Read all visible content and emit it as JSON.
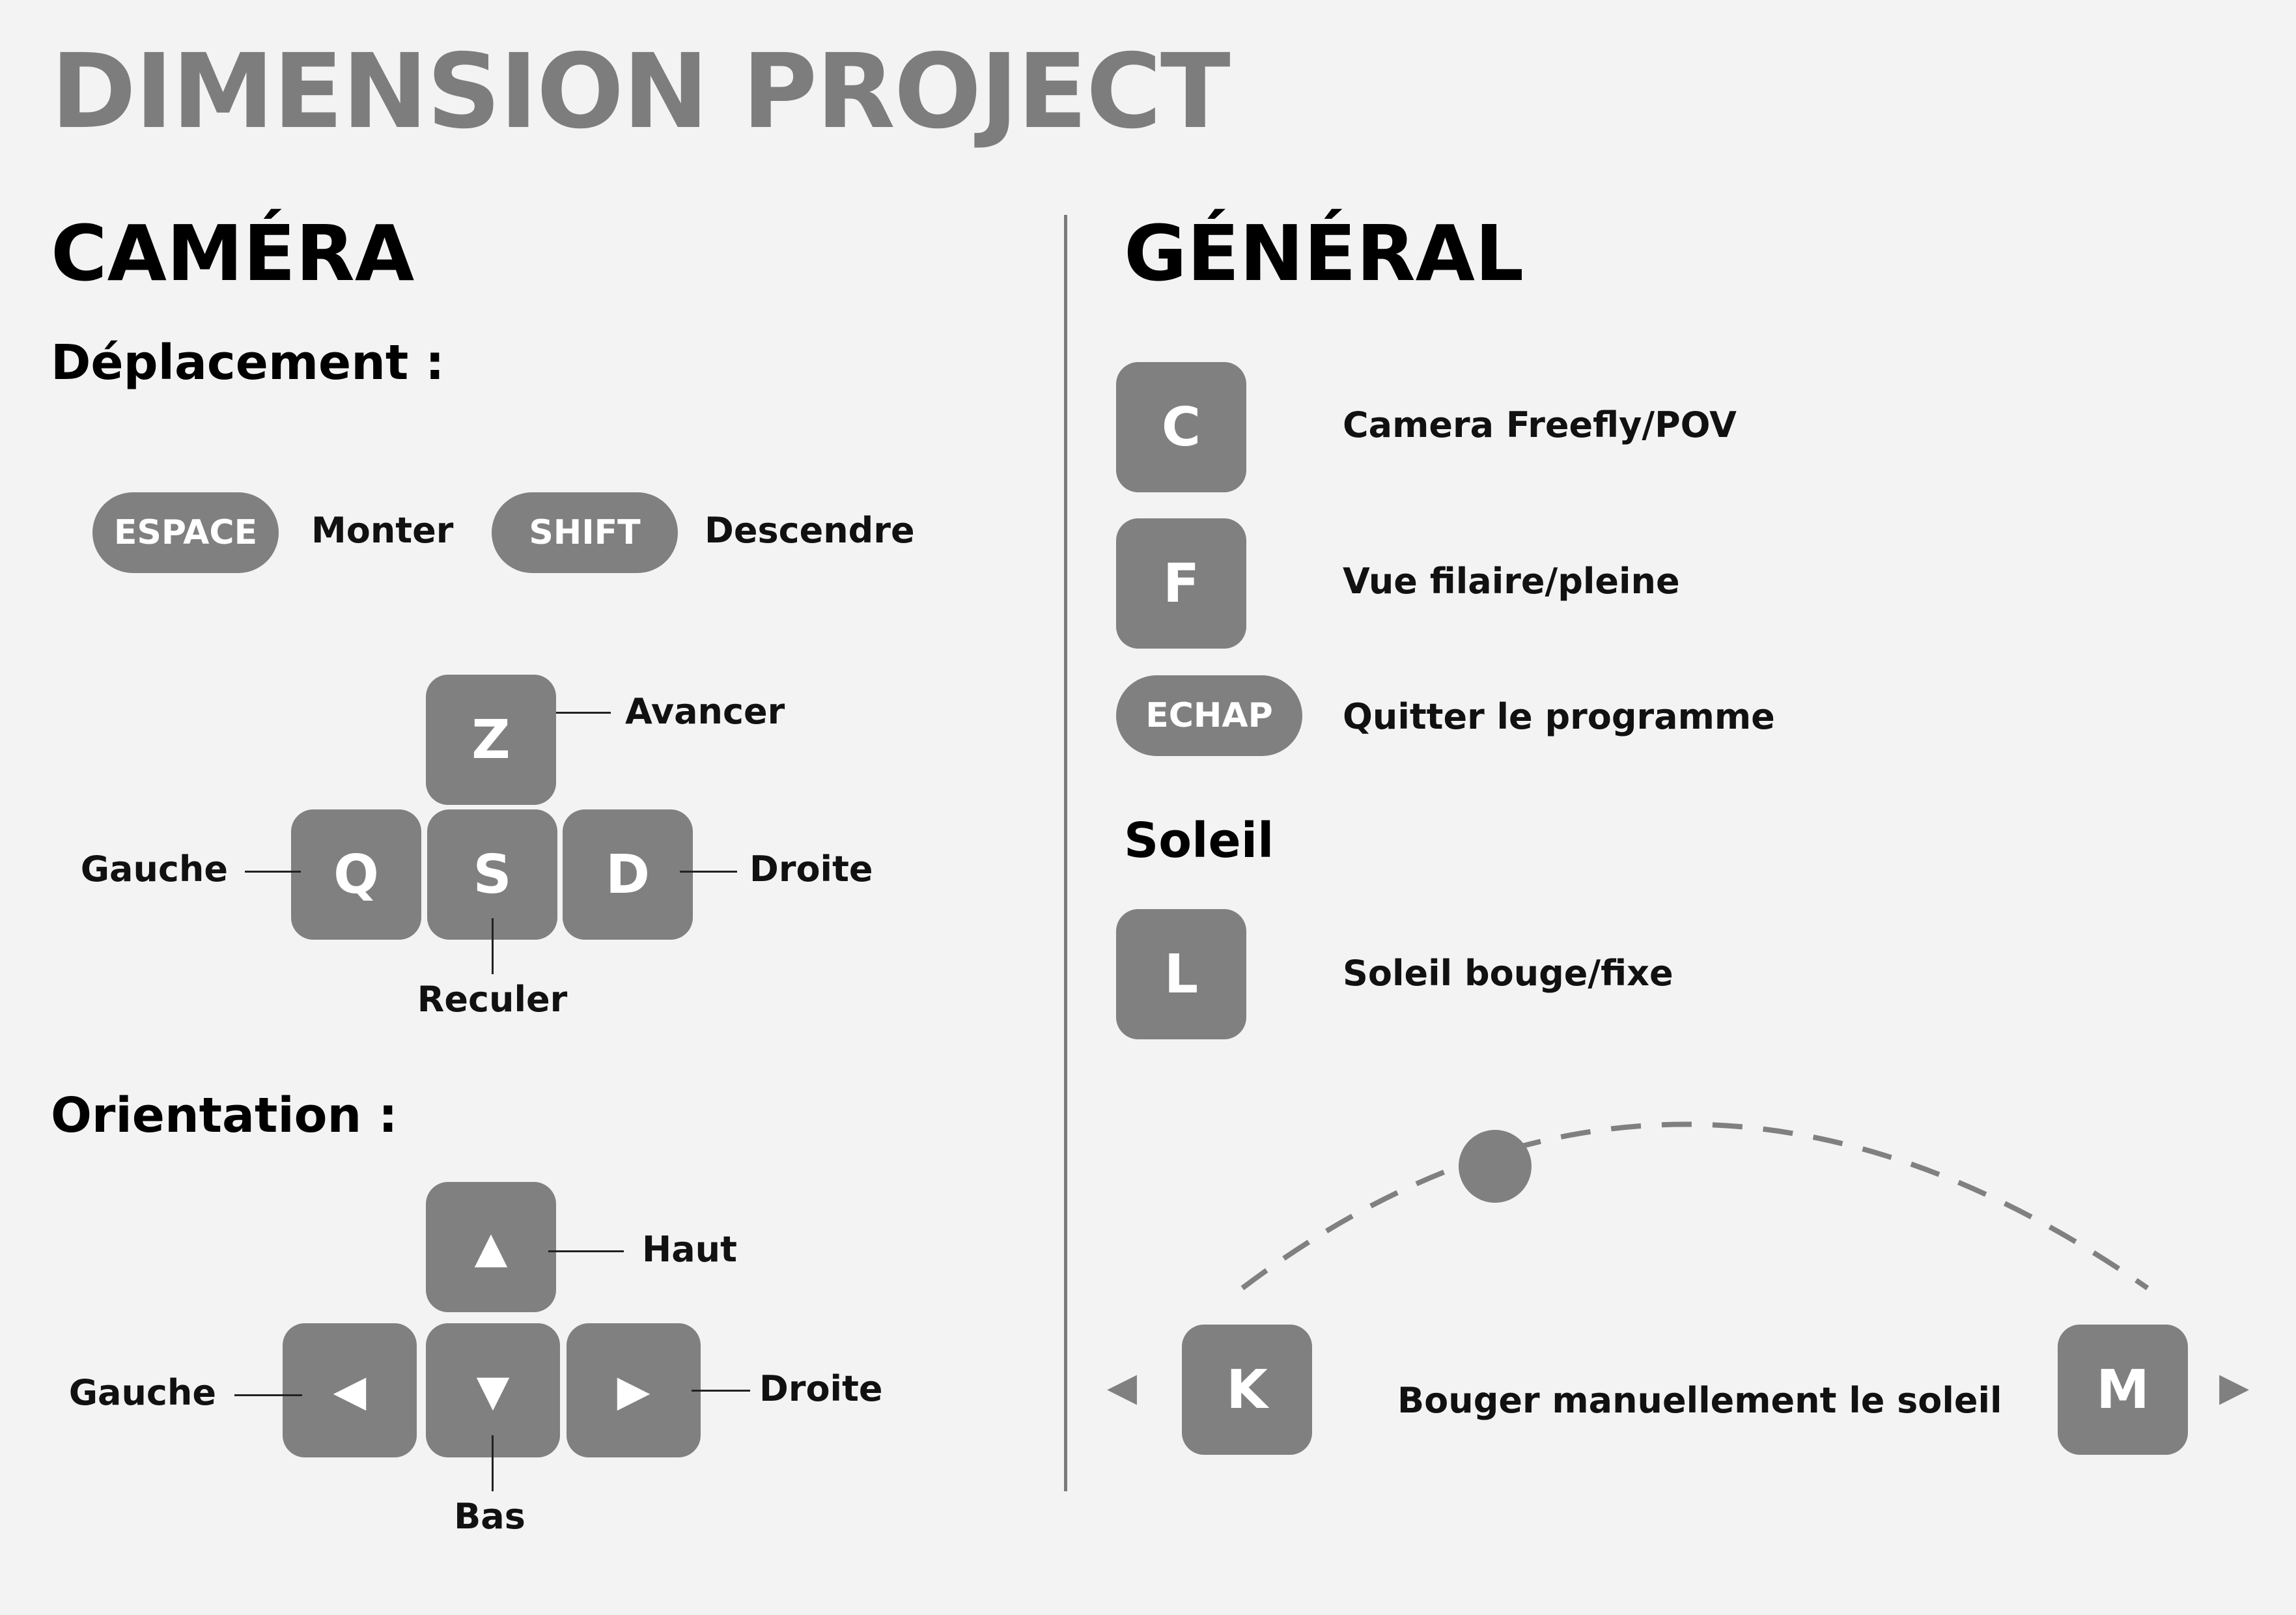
{
  "title": "DIMENSION PROJECT",
  "camera": {
    "heading": "CAMÉRA",
    "movement": {
      "heading": "Déplacement :",
      "up_key": "ESPACE",
      "up_label": "Monter",
      "down_key": "SHIFT",
      "down_label": "Descendre",
      "keys": {
        "forward": "Z",
        "left": "Q",
        "back": "S",
        "right": "D"
      },
      "labels": {
        "forward": "Avancer",
        "left": "Gauche",
        "back": "Reculer",
        "right": "Droite"
      }
    },
    "orientation": {
      "heading": "Orientation :",
      "keys": {
        "up": "▲",
        "left": "◀",
        "down": "▼",
        "right": "▶"
      },
      "labels": {
        "up": "Haut",
        "left": "Gauche",
        "down": "Bas",
        "right": "Droite"
      }
    }
  },
  "general": {
    "heading": "GÉNÉRAL",
    "shortcuts": [
      {
        "key": "C",
        "label": "Camera Freefly/POV"
      },
      {
        "key": "F",
        "label": "Vue filaire/pleine"
      },
      {
        "key": "ECHAP",
        "label": "Quitter le programme"
      }
    ],
    "sun": {
      "heading": "Soleil",
      "toggle_key": "L",
      "toggle_label": "Soleil bouge/fixe",
      "left_key": "K",
      "right_key": "M",
      "manual_label": "Bouger manuellement le soleil",
      "left_arrow": "◀",
      "right_arrow": "▶"
    }
  },
  "colors": {
    "background": "#f3f3f3",
    "key": "#808080",
    "title": "#7d7d7d",
    "text": "#000000"
  }
}
